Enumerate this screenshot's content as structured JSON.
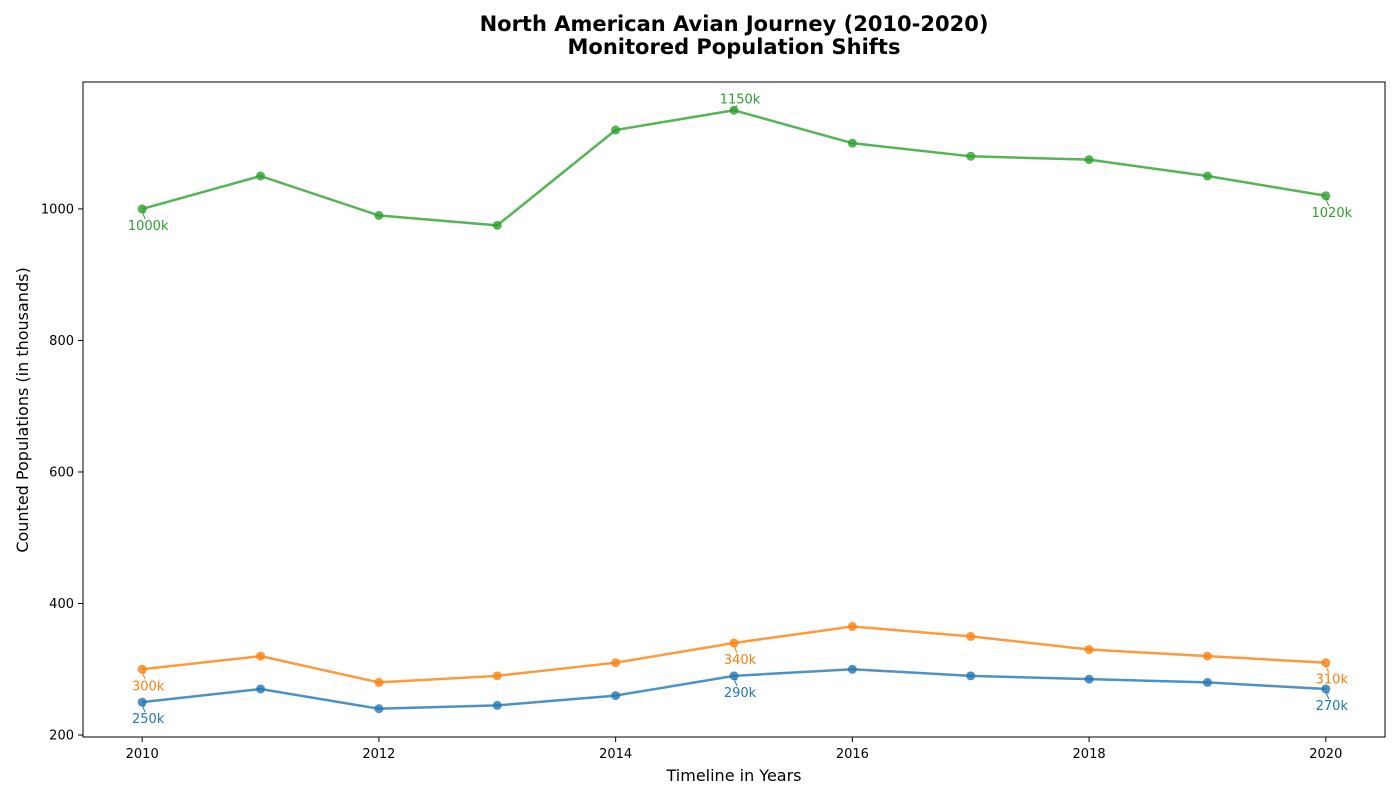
{
  "chart_data": {
    "type": "line",
    "title": "North American Avian Journey (2010-2020)",
    "subtitle": "Monitored Population Shifts",
    "xlabel": "Timeline in Years",
    "ylabel": "Counted Populations (in thousands)",
    "x": [
      2010,
      2011,
      2012,
      2013,
      2014,
      2015,
      2016,
      2017,
      2018,
      2019,
      2020
    ],
    "xlim": [
      2009.5,
      2020.5
    ],
    "ylim": [
      197,
      1193
    ],
    "x_ticks": [
      2010,
      2012,
      2014,
      2016,
      2018,
      2020
    ],
    "y_ticks": [
      200,
      400,
      600,
      800,
      1000
    ],
    "grid": false,
    "legend": "none",
    "series": [
      {
        "color": "#1f77b4",
        "values": [
          250,
          270,
          240,
          245,
          260,
          290,
          300,
          290,
          285,
          280,
          270
        ],
        "annotations": [
          {
            "x": 2010,
            "y": 250,
            "text": "250k",
            "position": "below"
          },
          {
            "x": 2015,
            "y": 290,
            "text": "290k",
            "position": "below"
          },
          {
            "x": 2020,
            "y": 270,
            "text": "270k",
            "position": "below"
          }
        ]
      },
      {
        "color": "#ff7f0e",
        "values": [
          300,
          320,
          280,
          290,
          310,
          340,
          365,
          350,
          330,
          320,
          310
        ],
        "annotations": [
          {
            "x": 2010,
            "y": 300,
            "text": "300k",
            "position": "below"
          },
          {
            "x": 2015,
            "y": 340,
            "text": "340k",
            "position": "below"
          },
          {
            "x": 2020,
            "y": 310,
            "text": "310k",
            "position": "below"
          }
        ]
      },
      {
        "color": "#2ca02c",
        "values": [
          1000,
          1050,
          990,
          975,
          1120,
          1150,
          1100,
          1080,
          1075,
          1050,
          1020
        ],
        "annotations": [
          {
            "x": 2010,
            "y": 1000,
            "text": "1000k",
            "position": "below"
          },
          {
            "x": 2015,
            "y": 1150,
            "text": "1150k",
            "position": "above"
          },
          {
            "x": 2020,
            "y": 1020,
            "text": "1020k",
            "position": "below"
          }
        ]
      }
    ]
  }
}
